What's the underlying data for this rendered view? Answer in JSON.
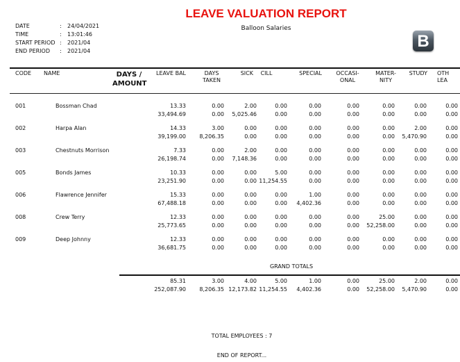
{
  "report": {
    "title": "LEAVE VALUATION REPORT",
    "subtitle": "Balloon Salaries",
    "logo_text": "B",
    "meta": [
      {
        "label": "DATE",
        "value": "24/04/2021"
      },
      {
        "label": "TIME",
        "value": "13:01:46"
      },
      {
        "label": "START PERIOD",
        "value": "2021/04"
      },
      {
        "label": "END PERIOD",
        "value": "2021/04"
      }
    ],
    "meta_separator": ":"
  },
  "columns": {
    "code": "CODE",
    "name": "NAME",
    "days_amount": [
      "DAYS /",
      "AMOUNT"
    ],
    "leave_bal": "LEAVE BAL",
    "days_taken": [
      "DAYS",
      "TAKEN"
    ],
    "sick": "SICK",
    "cill": "CILL",
    "special": "SPECIAL",
    "occasional": [
      "OCCASI-",
      "ONAL"
    ],
    "maternity": [
      "MATER-",
      "NITY"
    ],
    "study": "STUDY",
    "other": [
      "OTH",
      "LEA"
    ]
  },
  "employees": [
    {
      "code": "001",
      "name": "Bossman Chad",
      "days": [
        "13.33",
        "0.00",
        "2.00",
        "0.00",
        "0.00",
        "0.00",
        "0.00",
        "0.00",
        "0.00"
      ],
      "amount": [
        "33,494.69",
        "0.00",
        "5,025.46",
        "0.00",
        "0.00",
        "0.00",
        "0.00",
        "0.00",
        "0.00"
      ]
    },
    {
      "code": "002",
      "name": "Harpa Alan",
      "days": [
        "14.33",
        "3.00",
        "0.00",
        "0.00",
        "0.00",
        "0.00",
        "0.00",
        "2.00",
        "0.00"
      ],
      "amount": [
        "39,199.00",
        "8,206.35",
        "0.00",
        "0.00",
        "0.00",
        "0.00",
        "0.00",
        "5,470.90",
        "0.00"
      ]
    },
    {
      "code": "003",
      "name": "Chestnuts Morrison",
      "days": [
        "7.33",
        "0.00",
        "2.00",
        "0.00",
        "0.00",
        "0.00",
        "0.00",
        "0.00",
        "0.00"
      ],
      "amount": [
        "26,198.74",
        "0.00",
        "7,148.36",
        "0.00",
        "0.00",
        "0.00",
        "0.00",
        "0.00",
        "0.00"
      ]
    },
    {
      "code": "005",
      "name": "Bonds James",
      "days": [
        "10.33",
        "0.00",
        "0.00",
        "5.00",
        "0.00",
        "0.00",
        "0.00",
        "0.00",
        "0.00"
      ],
      "amount": [
        "23,251.90",
        "0.00",
        "0.00",
        "11,254.55",
        "0.00",
        "0.00",
        "0.00",
        "0.00",
        "0.00"
      ]
    },
    {
      "code": "006",
      "name": "Flawrence Jennifer",
      "days": [
        "15.33",
        "0.00",
        "0.00",
        "0.00",
        "1.00",
        "0.00",
        "0.00",
        "0.00",
        "0.00"
      ],
      "amount": [
        "67,488.18",
        "0.00",
        "0.00",
        "0.00",
        "4,402.36",
        "0.00",
        "0.00",
        "0.00",
        "0.00"
      ]
    },
    {
      "code": "008",
      "name": "Crew Terry",
      "days": [
        "12.33",
        "0.00",
        "0.00",
        "0.00",
        "0.00",
        "0.00",
        "25.00",
        "0.00",
        "0.00"
      ],
      "amount": [
        "25,773.65",
        "0.00",
        "0.00",
        "0.00",
        "0.00",
        "0.00",
        "52,258.00",
        "0.00",
        "0.00"
      ]
    },
    {
      "code": "009",
      "name": "Deep Johnny",
      "days": [
        "12.33",
        "0.00",
        "0.00",
        "0.00",
        "0.00",
        "0.00",
        "0.00",
        "0.00",
        "0.00"
      ],
      "amount": [
        "36,681.75",
        "0.00",
        "0.00",
        "0.00",
        "0.00",
        "0.00",
        "0.00",
        "0.00",
        "0.00"
      ]
    }
  ],
  "grand_totals": {
    "label": "GRAND TOTALS",
    "days": [
      "85.31",
      "3.00",
      "4.00",
      "5.00",
      "1.00",
      "0.00",
      "25.00",
      "2.00",
      "0.00"
    ],
    "amount": [
      "252,087.90",
      "8,206.35",
      "12,173.82",
      "11,254.55",
      "4,402.36",
      "0.00",
      "52,258.00",
      "5,470.90",
      "0.00"
    ]
  },
  "footer": {
    "total_employees": "TOTAL EMPLOYEES : 7",
    "end_of_report": "END OF REPORT..."
  }
}
